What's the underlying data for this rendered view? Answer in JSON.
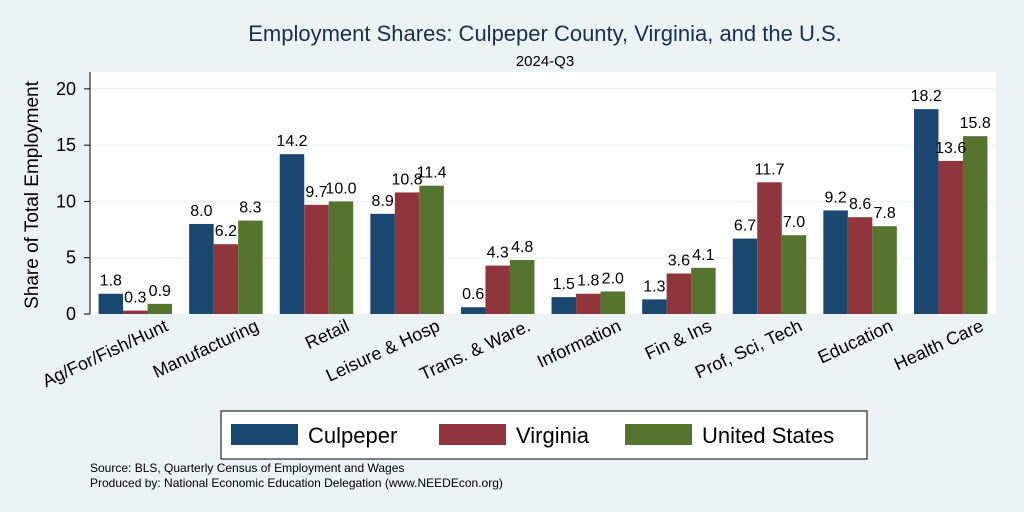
{
  "chart_data": {
    "type": "bar",
    "title": "Employment Shares: Culpeper County, Virginia, and the U.S.",
    "subtitle": "2024-Q3",
    "ylabel": "Share of Total Employment",
    "xlabel": "",
    "ylim": [
      0,
      21.5
    ],
    "yticks": [
      0,
      5,
      10,
      15,
      20
    ],
    "categories": [
      "Ag/For/Fish/Hunt",
      "Manufacturing",
      "Retail",
      "Leisure & Hosp",
      "Trans. & Ware.",
      "Information",
      "Fin & Ins",
      "Prof, Sci, Tech",
      "Education",
      "Health Care"
    ],
    "series": [
      {
        "name": "Culpeper",
        "color": "#1a476f",
        "values": [
          1.8,
          8.0,
          14.2,
          8.9,
          0.6,
          1.5,
          1.3,
          6.7,
          9.2,
          18.2
        ]
      },
      {
        "name": "Virginia",
        "color": "#90353b",
        "values": [
          0.3,
          6.2,
          9.7,
          10.8,
          4.3,
          1.8,
          3.6,
          11.7,
          8.6,
          13.6
        ]
      },
      {
        "name": "United States",
        "color": "#55752f",
        "values": [
          0.9,
          8.3,
          10.0,
          11.4,
          4.8,
          2.0,
          4.1,
          7.0,
          7.8,
          15.8
        ]
      }
    ],
    "grid": true,
    "legend_position": "bottom"
  },
  "notes": {
    "source": "Source: BLS, Quarterly Census of Employment and Wages",
    "produced_by": "Produced by: National Economic Education Delegation (www.NEEDEcon.org)"
  }
}
